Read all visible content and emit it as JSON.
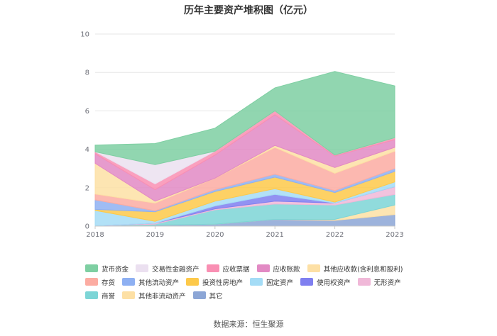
{
  "chart_data": {
    "type": "area",
    "stacked": true,
    "title": "历年主要资产堆积图（亿元）",
    "categories": [
      "2018",
      "2019",
      "2020",
      "2021",
      "2022",
      "2023"
    ],
    "ylim": [
      0,
      10
    ],
    "yticks": [
      0,
      2,
      4,
      6,
      8,
      10
    ],
    "grid": true,
    "legend_position": "bottom",
    "series": [
      {
        "name": "其它",
        "color": "#8ca6d6",
        "values": [
          0.02,
          0.05,
          0.1,
          0.35,
          0.3,
          0.6
        ]
      },
      {
        "name": "其他非流动资产",
        "color": "#fde0a5",
        "values": [
          0.0,
          0.0,
          0.0,
          0.0,
          0.05,
          0.5
        ]
      },
      {
        "name": "商誉",
        "color": "#7dd5d6",
        "values": [
          0.0,
          0.05,
          0.75,
          0.8,
          0.75,
          0.55
        ]
      },
      {
        "name": "无形资产",
        "color": "#f0b8d8",
        "values": [
          0.0,
          0.05,
          0.05,
          0.15,
          0.1,
          0.4
        ]
      },
      {
        "name": "使用权资产",
        "color": "#7f7ff0",
        "values": [
          0.0,
          0.0,
          0.15,
          0.35,
          0.0,
          0.0
        ]
      },
      {
        "name": "固定资产",
        "color": "#a4dcf6",
        "values": [
          0.8,
          0.1,
          0.25,
          0.3,
          0.05,
          0.25
        ]
      },
      {
        "name": "投资性房地产",
        "color": "#fdc94a",
        "values": [
          0.05,
          0.5,
          0.5,
          0.6,
          0.5,
          0.55
        ]
      },
      {
        "name": "其他流动资产",
        "color": "#8eb0f2",
        "values": [
          0.5,
          0.05,
          0.1,
          0.15,
          0.1,
          0.15
        ]
      },
      {
        "name": "存货",
        "color": "#fcaca2",
        "values": [
          0.3,
          0.4,
          0.6,
          1.4,
          0.9,
          0.9
        ]
      },
      {
        "name": "其他应收款(含利息和股利)",
        "color": "#fde0a5",
        "values": [
          1.6,
          0.1,
          0.0,
          0.1,
          0.3,
          0.2
        ]
      },
      {
        "name": "应收账款",
        "color": "#e28ac4",
        "values": [
          0.5,
          0.6,
          1.2,
          1.6,
          0.6,
          0.4
        ]
      },
      {
        "name": "应收票据",
        "color": "#f98fb3",
        "values": [
          0.1,
          0.3,
          0.2,
          0.2,
          0.05,
          0.1
        ]
      },
      {
        "name": "交易性金融资产",
        "color": "#ebe0f0",
        "values": [
          0.0,
          1.0,
          0.0,
          0.0,
          0.0,
          0.0
        ]
      },
      {
        "name": "货币资金",
        "color": "#7ecfa2",
        "values": [
          0.35,
          1.1,
          1.2,
          1.2,
          4.35,
          2.7
        ]
      }
    ]
  },
  "legend": {
    "rows": [
      [
        {
          "label": "货币资金",
          "color": "#7ecfa2"
        },
        {
          "label": "交易性金融资产",
          "color": "#ebe0f0"
        },
        {
          "label": "应收票据",
          "color": "#f98fb3"
        },
        {
          "label": "应收账款",
          "color": "#e28ac4"
        },
        {
          "label": "其他应收款(含利息和股利)",
          "color": "#fde0a5"
        }
      ],
      [
        {
          "label": "存货",
          "color": "#fcaca2"
        },
        {
          "label": "其他流动资产",
          "color": "#8eb0f2"
        },
        {
          "label": "投资性房地产",
          "color": "#fdc94a"
        },
        {
          "label": "固定资产",
          "color": "#a4dcf6"
        },
        {
          "label": "使用权资产",
          "color": "#7f7ff0"
        },
        {
          "label": "无形资产",
          "color": "#f0b8d8"
        }
      ],
      [
        {
          "label": "商誉",
          "color": "#7dd5d6"
        },
        {
          "label": "其他非流动资产",
          "color": "#fde0a5"
        },
        {
          "label": "其它",
          "color": "#8ca6d6"
        }
      ]
    ]
  },
  "source": "数据来源：恒生聚源"
}
